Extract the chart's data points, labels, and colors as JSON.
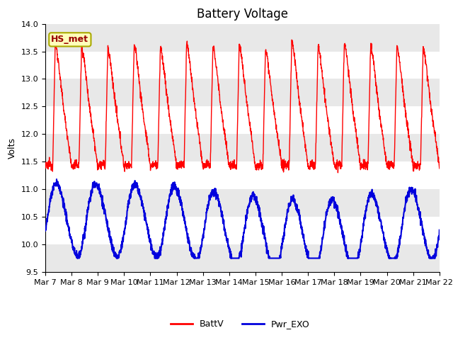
{
  "title": "Battery Voltage",
  "ylabel": "Volts",
  "ylim": [
    9.5,
    14.0
  ],
  "yticks": [
    9.5,
    10.0,
    10.5,
    11.0,
    11.5,
    12.0,
    12.5,
    13.0,
    13.5,
    14.0
  ],
  "x_labels": [
    "Mar 7",
    "Mar 8",
    "Mar 9",
    "Mar 10",
    "Mar 11",
    "Mar 12",
    "Mar 13",
    "Mar 14",
    "Mar 15",
    "Mar 16",
    "Mar 17",
    "Mar 18",
    "Mar 19",
    "Mar 20",
    "Mar 21",
    "Mar 22"
  ],
  "band_color": "#e8e8e8",
  "line_color_batt": "#ff0000",
  "line_color_pwr": "#0000dd",
  "legend_box_label": "HS_met",
  "legend_box_facecolor": "#ffffbb",
  "legend_box_edgecolor": "#aaaa00",
  "background_color": "#ffffff",
  "title_fontsize": 12,
  "label_fontsize": 9,
  "tick_fontsize": 8
}
